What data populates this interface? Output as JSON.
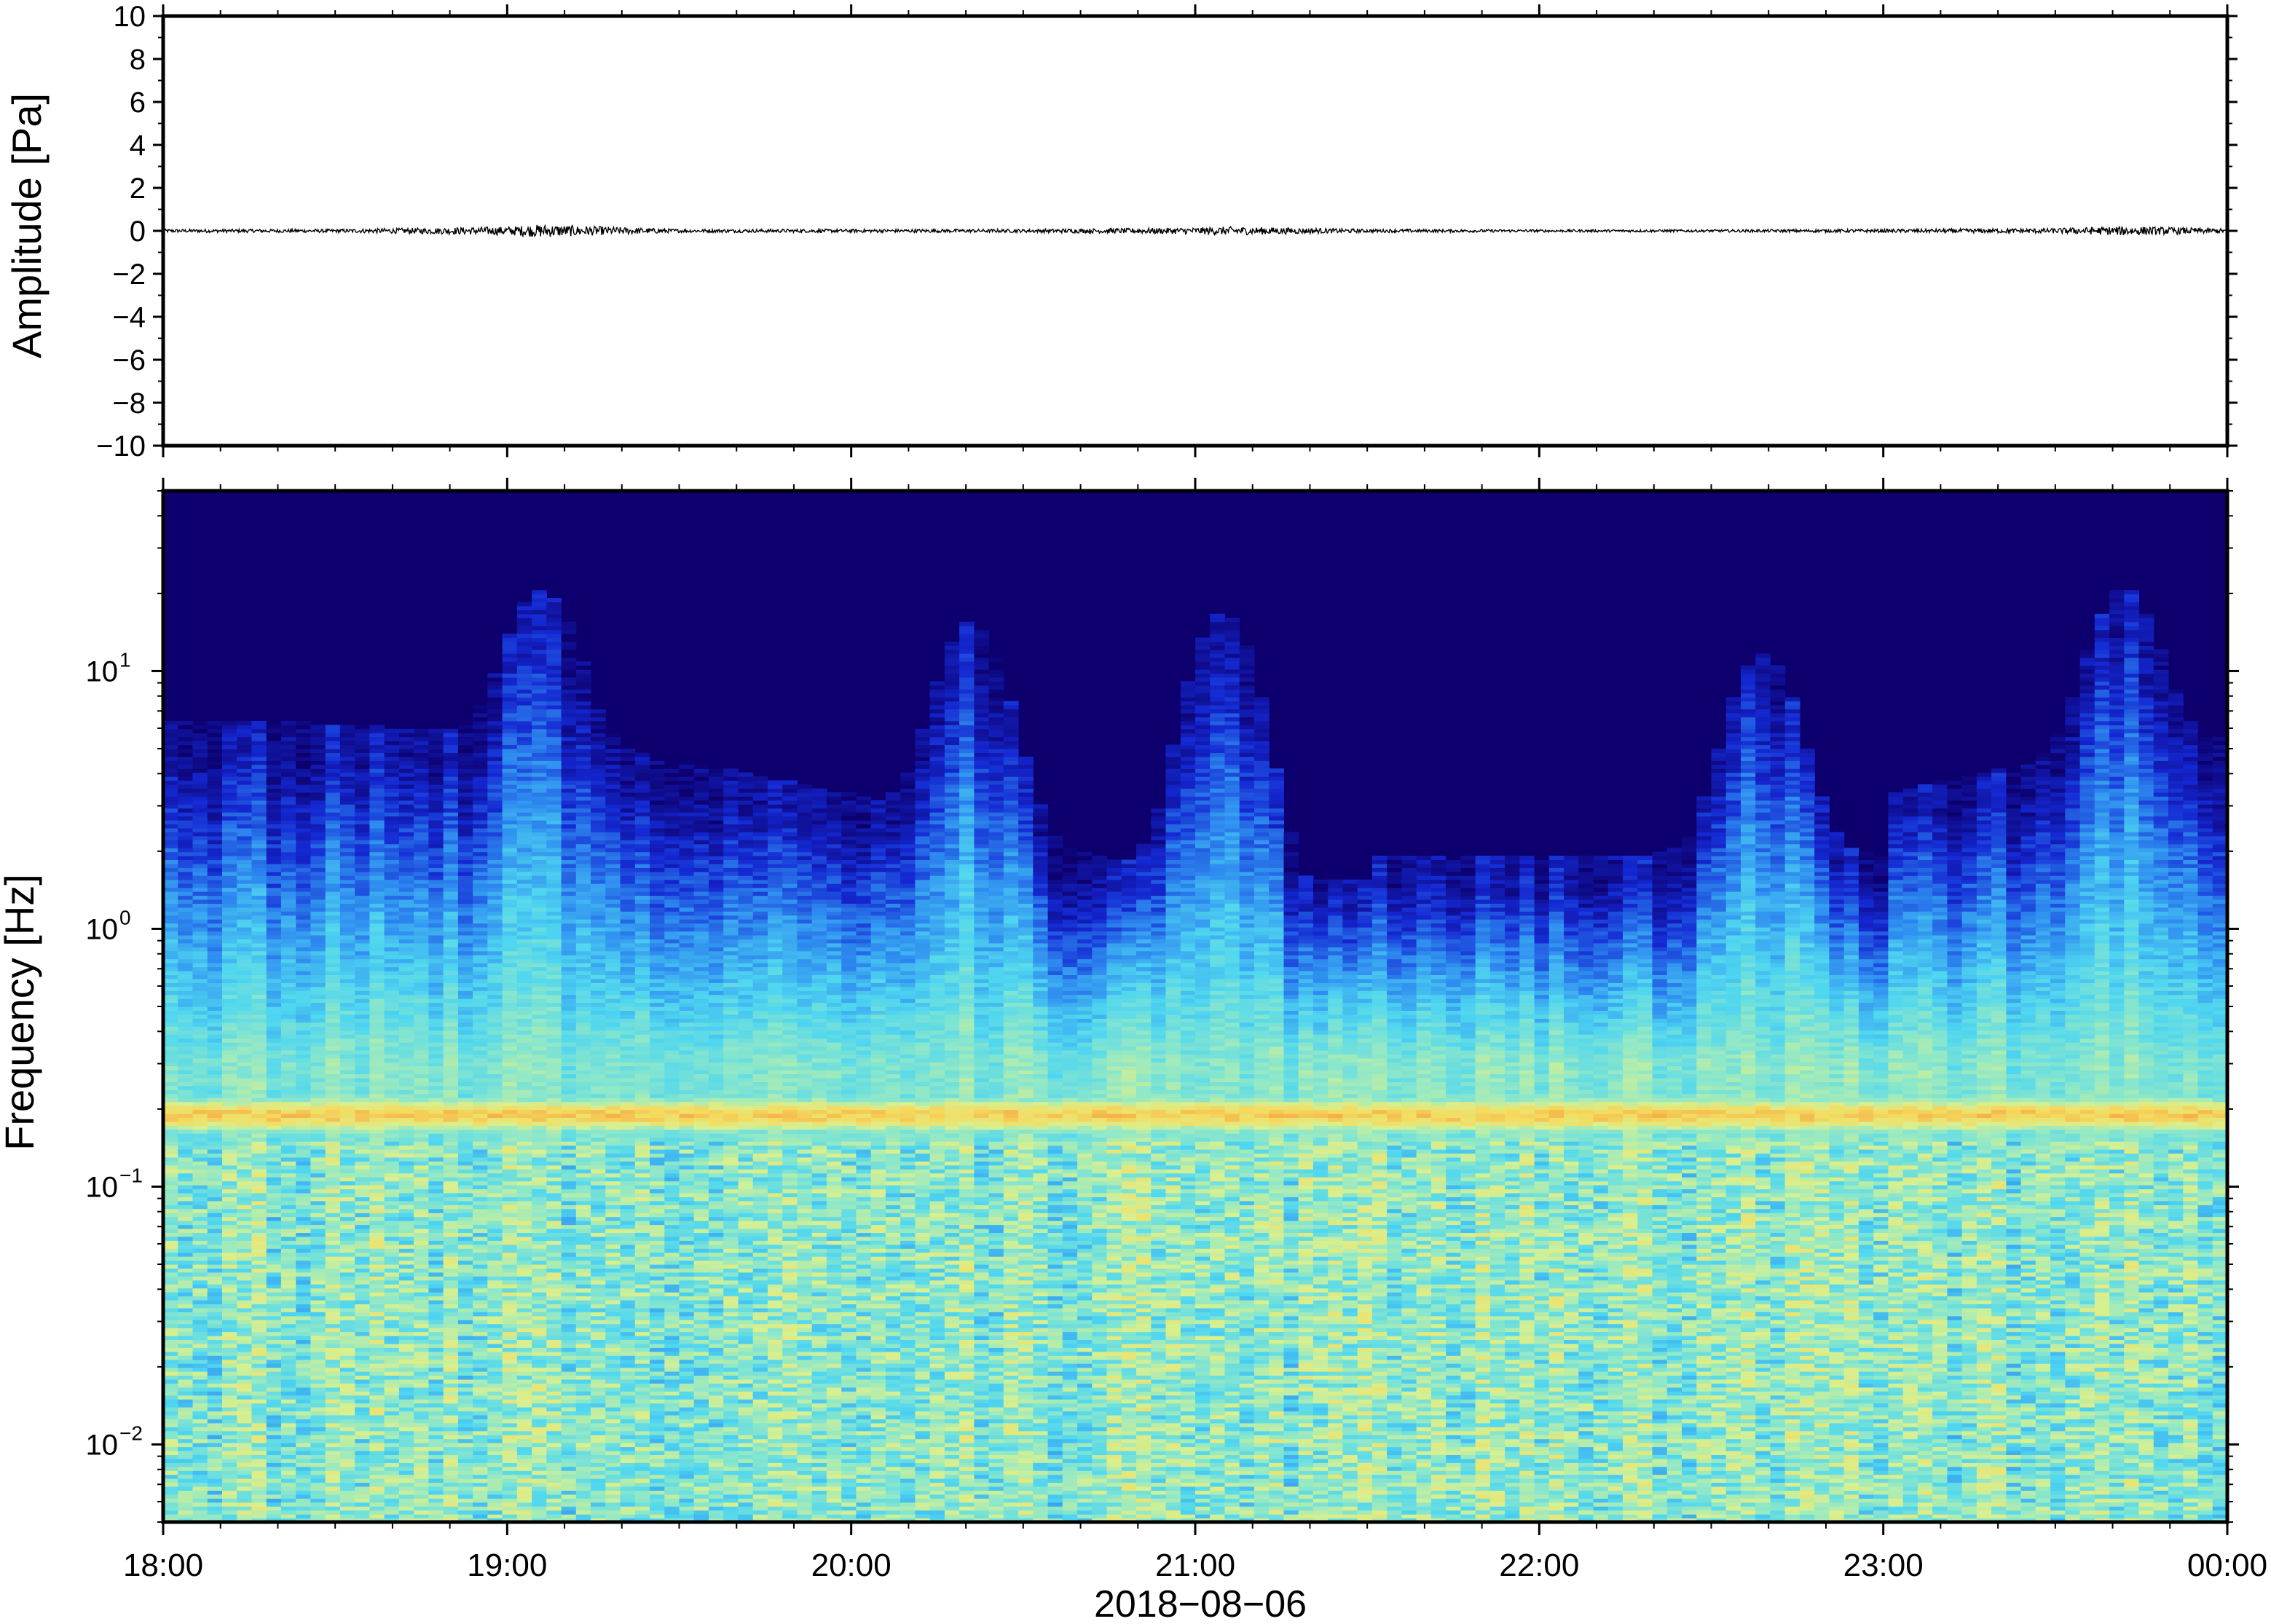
{
  "chart_data": [
    {
      "type": "line",
      "ylabel": "Amplitude [Pa]",
      "ylim": [
        -10,
        10
      ],
      "yticks": [
        10,
        8,
        6,
        4,
        2,
        0,
        -2,
        -4,
        -6,
        -8,
        -10
      ],
      "yticks_label": [
        "10",
        "8",
        "6",
        "4",
        "2",
        "0",
        "−2",
        "−4",
        "−6",
        "−8",
        "−10"
      ],
      "xlim": [
        "18:00",
        "00:00"
      ],
      "series": [
        {
          "values_note": "",
          "x_hours": [
            18.0,
            18.5,
            19.0,
            19.1,
            19.5,
            20.0,
            20.5,
            21.0,
            21.1,
            21.5,
            22.0,
            22.5,
            23.0,
            23.5,
            23.7,
            24.0
          ],
          "envelope": [
            0.08,
            0.08,
            0.2,
            0.3,
            0.08,
            0.08,
            0.08,
            0.15,
            0.2,
            0.08,
            0.06,
            0.06,
            0.08,
            0.12,
            0.22,
            0.1
          ],
          "color": "#000000"
        }
      ],
      "grid": false
    },
    {
      "type": "heatmap",
      "xlabel": "2018−08−06",
      "ylabel": "Frequency [Hz]",
      "x_ticks": [
        "18:00",
        "19:00",
        "20:00",
        "21:00",
        "22:00",
        "23:00",
        "00:00"
      ],
      "y_ticks": [
        {
          "value": 0.01,
          "base": "10",
          "exp": "−2"
        },
        {
          "value": 0.1,
          "base": "10",
          "exp": "−1"
        },
        {
          "value": 1,
          "base": "10",
          "exp": "0"
        },
        {
          "value": 10,
          "base": "10",
          "exp": "1"
        }
      ],
      "y_scale": "log",
      "ylim": [
        0.005,
        50
      ],
      "xlim_hours": [
        18,
        24
      ],
      "colormap": [
        "#0d006e",
        "#1428d2",
        "#2f8ef0",
        "#4fd6f0",
        "#8fe8c8",
        "#d8f090",
        "#f4dc60",
        "#f5a040",
        "#e85020"
      ],
      "microseism_peak_hz": 0.19,
      "bursts": [
        {
          "t_hours": 19.1,
          "top_hz": 16
        },
        {
          "t_hours": 20.35,
          "top_hz": 12
        },
        {
          "t_hours": 21.08,
          "top_hz": 13
        },
        {
          "t_hours": 22.65,
          "top_hz": 9
        },
        {
          "t_hours": 23.7,
          "top_hz": 16
        }
      ],
      "grid": false
    }
  ]
}
